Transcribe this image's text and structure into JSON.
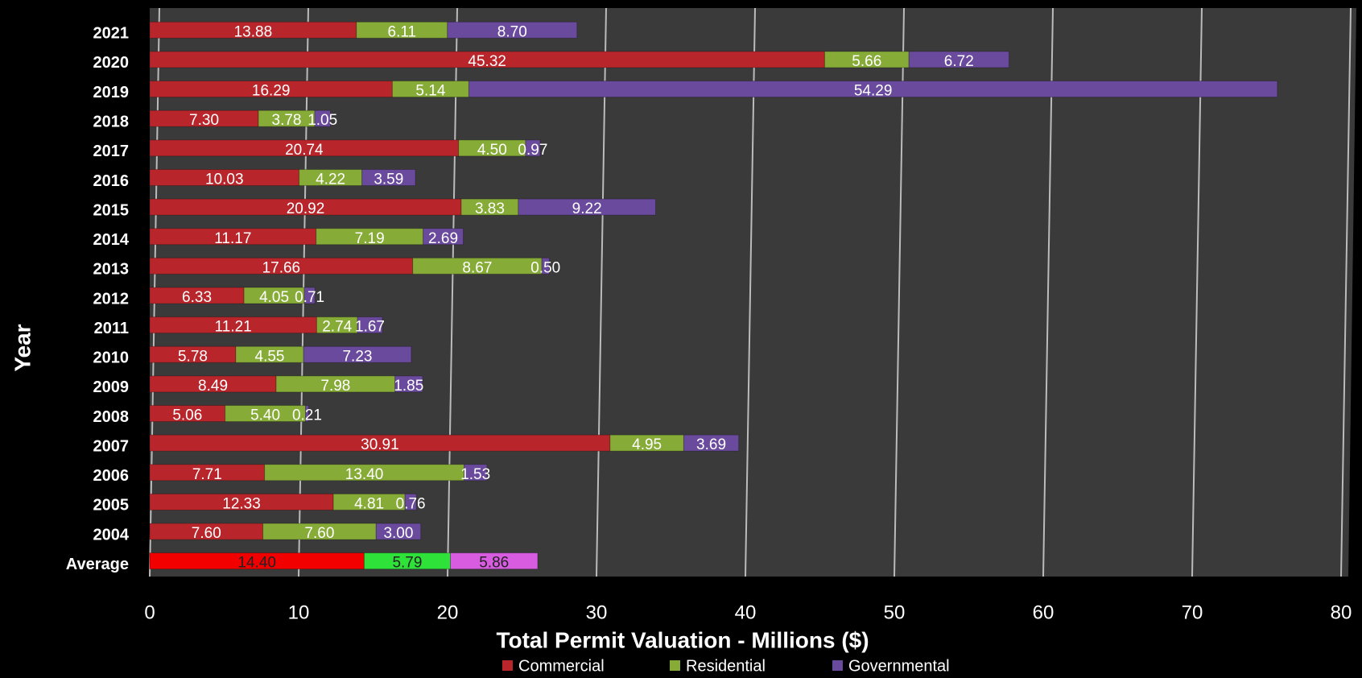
{
  "chart_data": {
    "type": "stacked-bar-horizontal",
    "xlabel": "Total Permit Valuation  - Millions ($)",
    "ylabel": "Year",
    "categories": [
      "2021",
      "2020",
      "2019",
      "2018",
      "2017",
      "2016",
      "2015",
      "2014",
      "2013",
      "2012",
      "2011",
      "2010",
      "2009",
      "2008",
      "2007",
      "2006",
      "2005",
      "2004",
      "Average"
    ],
    "series": [
      {
        "name": "Commercial",
        "color": "#b8262b",
        "highlight_color": "#f20000",
        "values": [
          13.88,
          45.32,
          16.29,
          7.3,
          20.74,
          10.03,
          20.92,
          11.17,
          17.66,
          6.33,
          11.21,
          5.78,
          8.49,
          5.06,
          30.91,
          7.71,
          12.33,
          7.6,
          14.4
        ],
        "value_labels": [
          "13.88",
          "45.32",
          "16.29",
          "7.30",
          "20.74",
          "10.03",
          "20.92",
          "11.17",
          "17.66",
          "6.33",
          "11.21",
          "5.78",
          "8.49",
          "5.06",
          "30.91",
          "7.71",
          "12.33",
          "7.60",
          "14.40"
        ]
      },
      {
        "name": "Residential",
        "color": "#86ab37",
        "highlight_color": "#2fe23a",
        "values": [
          6.11,
          5.66,
          5.14,
          3.78,
          4.5,
          4.22,
          3.83,
          7.19,
          8.67,
          4.05,
          2.74,
          4.55,
          7.98,
          5.4,
          4.95,
          13.4,
          4.81,
          7.6,
          5.79
        ],
        "value_labels": [
          "6.11",
          "5.66",
          "5.14",
          "3.78",
          "4.50",
          "4.22",
          "3.83",
          "7.19",
          "8.67",
          "4.05",
          "2.74",
          "4.55",
          "7.98",
          "5.40",
          "4.95",
          "13.40",
          "4.81",
          "7.60",
          "5.79"
        ]
      },
      {
        "name": "Governmental",
        "color": "#6a4a9c",
        "highlight_color": "#d85ce0",
        "values": [
          8.7,
          6.72,
          54.29,
          1.05,
          0.97,
          3.59,
          9.22,
          2.69,
          0.5,
          0.71,
          1.67,
          7.23,
          1.85,
          0.21,
          3.69,
          1.53,
          0.76,
          3.0,
          5.86
        ],
        "value_labels": [
          "8.70",
          "6.72",
          "54.29",
          "1.05",
          "0.97",
          "3.59",
          "9.22",
          "2.69",
          "0.50",
          "0.71",
          "1.67",
          "7.23",
          "1.85",
          "0.21",
          "3.69",
          "1.53",
          "0.76",
          "3.00",
          "5.86"
        ]
      }
    ],
    "xlim": [
      0,
      80
    ],
    "xticks": [
      0,
      10,
      20,
      30,
      40,
      50,
      60,
      70,
      80
    ],
    "grid": true,
    "legend": "bottom"
  }
}
